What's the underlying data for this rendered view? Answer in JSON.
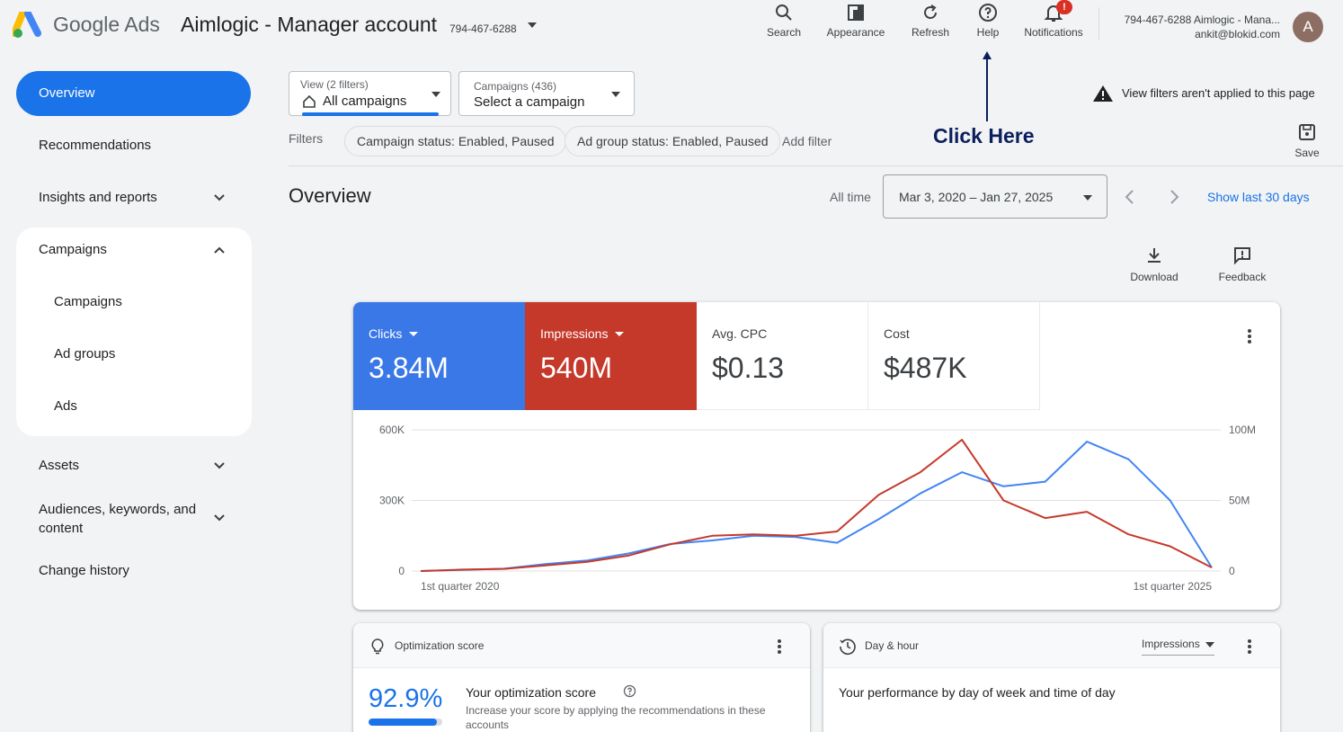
{
  "header": {
    "brand": "Google Ads",
    "account_name": "Aimlogic - Manager account",
    "account_id": "794-467-6288",
    "tools": [
      {
        "label": "Search",
        "icon": "search-icon"
      },
      {
        "label": "Appearance",
        "icon": "appearance-icon"
      },
      {
        "label": "Refresh",
        "icon": "refresh-icon"
      },
      {
        "label": "Help",
        "icon": "help-icon"
      },
      {
        "label": "Notifications",
        "icon": "bell-icon"
      }
    ],
    "notification_badge": "!",
    "account_line": "794-467-6288 Aimlogic - Mana...",
    "email": "ankit@blokid.com",
    "avatar_letter": "A"
  },
  "sidebar": {
    "items": [
      {
        "label": "Overview",
        "active": true
      },
      {
        "label": "Recommendations"
      },
      {
        "label": "Insights and reports"
      },
      {
        "label": "Campaigns"
      },
      {
        "label": "Campaigns"
      },
      {
        "label": "Ad groups"
      },
      {
        "label": "Ads"
      },
      {
        "label": "Assets"
      },
      {
        "label": "Audiences, keywords, and content"
      },
      {
        "label": "Change history"
      }
    ]
  },
  "filters": {
    "view_label": "View (2 filters)",
    "view_value": "All campaigns",
    "campaigns_label": "Campaigns (436)",
    "campaigns_value": "Select a campaign",
    "filters_label": "Filters",
    "chips": [
      "Campaign status: Enabled, Paused",
      "Ad group status: Enabled, Paused"
    ],
    "add_filter": "Add filter",
    "warning": "View filters aren't applied to this page",
    "save_label": "Save"
  },
  "annotation": {
    "text": "Click Here",
    "color": "#0b1f5c"
  },
  "overview": {
    "title": "Overview",
    "range_label": "All time",
    "date_range": "Mar 3, 2020 – Jan 27, 2025",
    "show_last": "Show last 30 days",
    "download_label": "Download",
    "feedback_label": "Feedback"
  },
  "metrics": [
    {
      "label": "Clicks",
      "value": "3.84M",
      "color": "#3b78e7"
    },
    {
      "label": "Impressions",
      "value": "540M",
      "color": "#c5392b"
    },
    {
      "label": "Avg. CPC",
      "value": "$0.13"
    },
    {
      "label": "Cost",
      "value": "$487K"
    }
  ],
  "chart_data": {
    "type": "line",
    "x_tick_labels": [
      "1st quarter 2020",
      "1st quarter 2025"
    ],
    "left_axis": {
      "ticks": [
        "600K",
        "300K",
        "0"
      ],
      "ylim": [
        0,
        600000
      ]
    },
    "right_axis": {
      "ticks": [
        "100M",
        "50M",
        "0"
      ],
      "ylim": [
        0,
        100000000
      ]
    },
    "series": [
      {
        "color": "#4285f4",
        "axis": "left",
        "values": [
          0,
          5000,
          10000,
          30000,
          45000,
          75000,
          115000,
          130000,
          150000,
          145000,
          120000,
          220000,
          330000,
          420000,
          360000,
          380000,
          550000,
          475000,
          300000,
          15000
        ]
      },
      {
        "color": "#c5392b",
        "axis": "right",
        "values": [
          0,
          1000000,
          1500000,
          4000000,
          6500000,
          11000000,
          19000000,
          25000000,
          26000000,
          25000000,
          28000000,
          54000000,
          70000000,
          93000000,
          50000000,
          37500000,
          42000000,
          26000000,
          17500000,
          2500000
        ]
      }
    ]
  },
  "opt_card": {
    "title": "Optimization score",
    "score": "92.9%",
    "score_fraction": 0.929,
    "heading": "Your optimization score",
    "desc": "Increase your score by applying the recommendations in these accounts"
  },
  "day_card": {
    "title": "Day & hour",
    "metric_select": "Impressions",
    "heading": "Your performance by day of week and time of day"
  }
}
